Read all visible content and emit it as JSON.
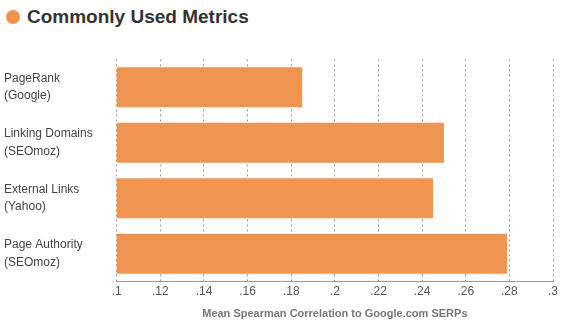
{
  "chart_data": {
    "type": "bar",
    "title": "Commonly Used Metrics",
    "orientation": "horizontal",
    "categories": [
      "PageRank\n(Google)",
      "Linking Domains\n(SEOmoz)",
      "External Links\n(Yahoo)",
      "Page Authority\n(SEOmoz)"
    ],
    "values": [
      0.185,
      0.25,
      0.245,
      0.279
    ],
    "color": "#f0954f",
    "x_label": "Mean Spearman Correlation to Google.com SERPs",
    "xlim": [
      0.1,
      0.3
    ],
    "xticks": [
      {
        "value": 0.1,
        "label": ".1"
      },
      {
        "value": 0.12,
        "label": ".12"
      },
      {
        "value": 0.14,
        "label": ".14"
      },
      {
        "value": 0.16,
        "label": ".16"
      },
      {
        "value": 0.18,
        "label": ".18"
      },
      {
        "value": 0.2,
        "label": ".2"
      },
      {
        "value": 0.22,
        "label": ".22"
      },
      {
        "value": 0.24,
        "label": ".24"
      },
      {
        "value": 0.26,
        "label": ".26"
      },
      {
        "value": 0.28,
        "label": ".28"
      },
      {
        "value": 0.3,
        "label": ".3"
      }
    ],
    "grid": true
  }
}
